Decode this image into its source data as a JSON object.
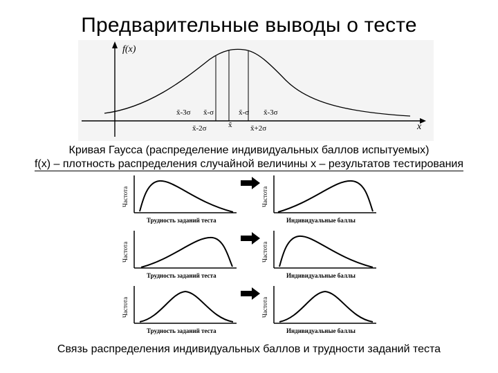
{
  "title": "Предварительные выводы о тесте",
  "gauss": {
    "y_label": "f(x)",
    "x_label": "x",
    "ticks_top": [
      "x̃-3σ",
      "x̃-σ",
      "x̃-σ",
      "x̃-3σ"
    ],
    "ticks_bottom": [
      "x̃-2σ",
      "x̃",
      "x̃+2σ"
    ]
  },
  "caption_line1": "Кривая Гаусса (распределение индивидуальных баллов испытуемых)",
  "caption_line2": "f(x) – плотность распределения случайной величины x – результатов тестирования",
  "pairs": [
    {
      "left_ylabel": "Частота",
      "left_xlabel": "Трудность заданий теста",
      "right_ylabel": "Частота",
      "right_xlabel": "Индивидуальные баллы",
      "left_shape": "right-skew",
      "right_shape": "left-skew"
    },
    {
      "left_ylabel": "Частота",
      "left_xlabel": "Трудность заданий теста",
      "right_ylabel": "Частота",
      "right_xlabel": "Индивидуальные баллы",
      "left_shape": "left-skew",
      "right_shape": "right-skew"
    },
    {
      "left_ylabel": "Частота",
      "left_xlabel": "Трудность заданий теста",
      "right_ylabel": "Частота",
      "right_xlabel": "Индивидуальные баллы",
      "left_shape": "normal",
      "right_shape": "normal"
    }
  ],
  "bottom_caption": "Связь распределения индивидуальных баллов и трудности заданий теста"
}
